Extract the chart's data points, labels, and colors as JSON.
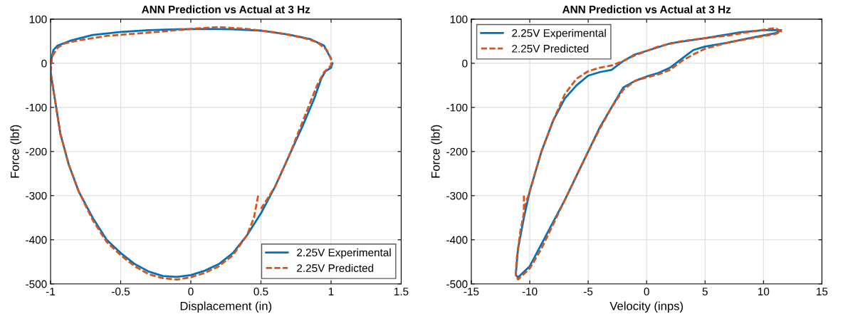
{
  "chart_data": [
    {
      "type": "line",
      "title": "ANN Prediction vs Actual at 3 Hz",
      "xlabel": "Displacement (in)",
      "ylabel": "Force (lbf)",
      "xlim": [
        -1,
        1.5
      ],
      "xticks": [
        -1,
        -0.5,
        0,
        0.5,
        1,
        1.5
      ],
      "ylim": [
        -500,
        100
      ],
      "yticks": [
        -500,
        -400,
        -300,
        -200,
        -100,
        0,
        100
      ],
      "grid": true,
      "legend": "bottom right",
      "series": [
        {
          "name": "2.25V Experimental",
          "color": "#0072bd",
          "line_style": "solid",
          "x": [
            1.0,
            0.95,
            0.85,
            0.7,
            0.5,
            0.3,
            0.1,
            -0.1,
            -0.3,
            -0.5,
            -0.7,
            -0.85,
            -0.95,
            -0.98,
            -1.0,
            -1.0,
            -0.97,
            -0.93,
            -0.87,
            -0.8,
            -0.7,
            -0.6,
            -0.5,
            -0.4,
            -0.3,
            -0.2,
            -0.1,
            0,
            0.1,
            0.2,
            0.3,
            0.4,
            0.5,
            0.6,
            0.7,
            0.8,
            0.88,
            0.93,
            0.96,
            1.0,
            1.01
          ],
          "values": [
            10,
            40,
            55,
            65,
            74,
            77,
            78,
            77,
            75,
            71,
            64,
            52,
            40,
            30,
            0,
            -20,
            -80,
            -160,
            -230,
            -290,
            -350,
            -400,
            -430,
            -455,
            -472,
            -482,
            -484,
            -480,
            -470,
            -455,
            -430,
            -390,
            -340,
            -280,
            -210,
            -140,
            -80,
            -35,
            -18,
            -10,
            0
          ]
        },
        {
          "name": "2.25V Predicted",
          "color": "#d95319",
          "line_style": "dashed",
          "x": [
            0.48,
            0.45,
            0.4,
            0.3,
            0.2,
            0.1,
            0,
            -0.1,
            -0.2,
            -0.3,
            -0.4,
            -0.5,
            -0.6,
            -0.7,
            -0.8,
            -0.87,
            -0.93,
            -0.97,
            -1.0,
            -0.99,
            -0.95,
            -0.9,
            -0.8,
            -0.6,
            -0.4,
            -0.2,
            0,
            0.2,
            0.4,
            0.6,
            0.8,
            0.9,
            0.97,
            1.0,
            1.0,
            0.95,
            0.9,
            0.8,
            0.7,
            0.6,
            0.5
          ],
          "values": [
            -300,
            -350,
            -390,
            -435,
            -460,
            -475,
            -485,
            -490,
            -487,
            -478,
            -460,
            -435,
            -405,
            -355,
            -290,
            -230,
            -160,
            -80,
            -20,
            15,
            35,
            45,
            52,
            62,
            67,
            72,
            78,
            82,
            78,
            70,
            58,
            48,
            30,
            10,
            -5,
            -20,
            -50,
            -130,
            -210,
            -280,
            -330
          ]
        }
      ]
    },
    {
      "type": "line",
      "title": "ANN Prediction vs Actual at 3 Hz",
      "xlabel": "Velocity (inps)",
      "ylabel": "Force (lbf)",
      "xlim": [
        -15,
        15
      ],
      "xticks": [
        -15,
        -10,
        -5,
        0,
        5,
        10,
        15
      ],
      "ylim": [
        -500,
        100
      ],
      "yticks": [
        -500,
        -400,
        -300,
        -200,
        -100,
        0,
        100
      ],
      "grid": true,
      "legend": "top left",
      "series": [
        {
          "name": "2.25V Experimental",
          "color": "#0072bd",
          "line_style": "solid",
          "x": [
            11.5,
            10,
            8,
            5,
            2,
            0,
            -1,
            -2,
            -3,
            -4,
            -5,
            -6,
            -7,
            -8,
            -9,
            -10,
            -10.5,
            -11,
            -11.2,
            -11,
            -10,
            -9,
            -8,
            -7,
            -6,
            -5,
            -4,
            -3,
            -2,
            -1,
            0,
            1,
            2,
            3,
            4,
            5,
            7,
            9,
            11,
            11.4
          ],
          "values": [
            75,
            75,
            70,
            57,
            45,
            28,
            20,
            5,
            -15,
            -20,
            -28,
            -50,
            -80,
            -130,
            -200,
            -290,
            -350,
            -420,
            -480,
            -485,
            -460,
            -410,
            -360,
            -310,
            -255,
            -200,
            -145,
            -100,
            -55,
            -40,
            -30,
            -22,
            -10,
            10,
            30,
            38,
            47,
            58,
            68,
            73
          ]
        },
        {
          "name": "2.25V Predicted",
          "color": "#d95319",
          "line_style": "dashed",
          "x": [
            -10.5,
            -10.5,
            -10.8,
            -11.1,
            -11.2,
            -11,
            -10,
            -9,
            -8,
            -7,
            -6,
            -5,
            -4,
            -3,
            -2,
            -1,
            0,
            1,
            2,
            3,
            4,
            5,
            7,
            9,
            11,
            11.5,
            11,
            9,
            7,
            5,
            3,
            1,
            0,
            -1,
            -2,
            -3,
            -4,
            -5,
            -6,
            -7,
            -8,
            -9,
            -10,
            -10.5
          ],
          "values": [
            -300,
            -340,
            -380,
            -440,
            -480,
            -490,
            -465,
            -420,
            -365,
            -310,
            -255,
            -200,
            -148,
            -100,
            -60,
            -40,
            -32,
            -25,
            -15,
            5,
            20,
            33,
            47,
            57,
            66,
            72,
            80,
            72,
            63,
            57,
            50,
            38,
            28,
            18,
            5,
            -5,
            -10,
            -18,
            -35,
            -70,
            -130,
            -200,
            -290,
            -330
          ]
        }
      ]
    }
  ]
}
